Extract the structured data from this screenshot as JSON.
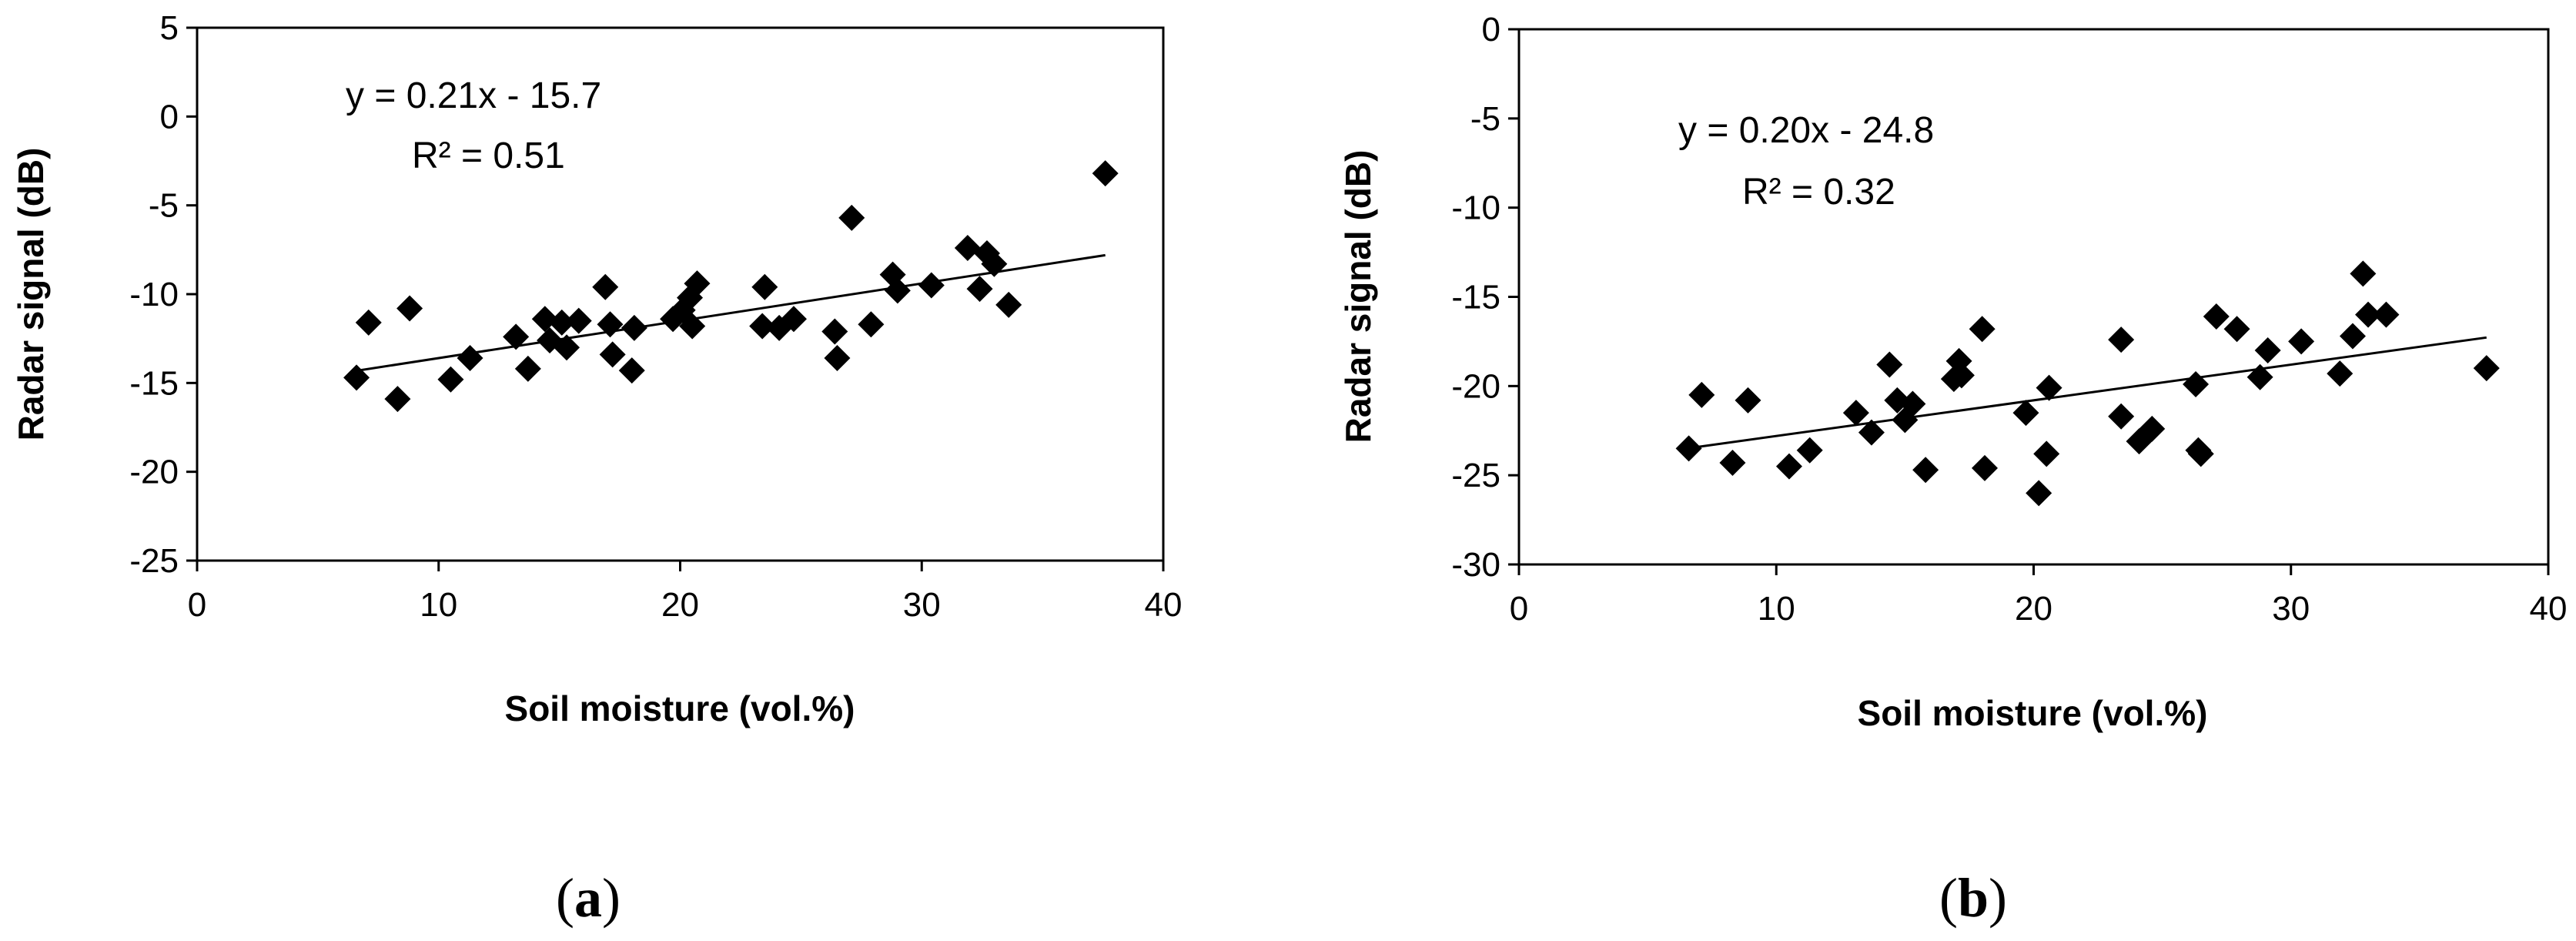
{
  "chart_data": [
    {
      "type": "scatter",
      "panel_label": {
        "open": "(",
        "letter": "a",
        "close": ")"
      },
      "xlabel": "Soil moisture (vol.%)",
      "ylabel": "Radar signal (dB)",
      "xlim": [
        0,
        40
      ],
      "ylim": [
        -25,
        5
      ],
      "xticks": [
        0,
        10,
        20,
        30,
        40
      ],
      "yticks": [
        -25,
        -20,
        -15,
        -10,
        -5,
        0,
        5
      ],
      "grid": false,
      "equation": "y = 0.21x - 15.7",
      "r2": "R² = 0.51",
      "trendline": {
        "slope": 0.21,
        "intercept": -15.7,
        "x_range": [
          6.6,
          37.6
        ]
      },
      "points": [
        [
          6.6,
          -14.7
        ],
        [
          7.1,
          -11.6
        ],
        [
          8.3,
          -15.9
        ],
        [
          8.8,
          -10.8
        ],
        [
          10.5,
          -14.8
        ],
        [
          11.3,
          -13.6
        ],
        [
          13.2,
          -12.4
        ],
        [
          13.7,
          -14.2
        ],
        [
          14.4,
          -11.4
        ],
        [
          14.6,
          -12.6
        ],
        [
          15.1,
          -11.6
        ],
        [
          15.3,
          -13.0
        ],
        [
          15.8,
          -11.5
        ],
        [
          16.9,
          -9.6
        ],
        [
          17.1,
          -11.7
        ],
        [
          17.2,
          -13.4
        ],
        [
          18.0,
          -14.3
        ],
        [
          18.1,
          -11.9
        ],
        [
          19.7,
          -11.4
        ],
        [
          20.1,
          -10.9
        ],
        [
          20.4,
          -10.2
        ],
        [
          20.5,
          -11.8
        ],
        [
          20.7,
          -9.4
        ],
        [
          23.4,
          -11.8
        ],
        [
          23.5,
          -9.6
        ],
        [
          24.1,
          -11.9
        ],
        [
          24.7,
          -11.4
        ],
        [
          26.4,
          -12.1
        ],
        [
          26.5,
          -13.6
        ],
        [
          27.1,
          -5.7
        ],
        [
          27.9,
          -11.7
        ],
        [
          28.8,
          -8.9
        ],
        [
          29.0,
          -9.8
        ],
        [
          30.4,
          -9.5
        ],
        [
          31.9,
          -7.4
        ],
        [
          32.4,
          -9.7
        ],
        [
          32.7,
          -7.7
        ],
        [
          33.0,
          -8.3
        ],
        [
          33.6,
          -10.6
        ],
        [
          37.6,
          -3.2
        ]
      ]
    },
    {
      "type": "scatter",
      "panel_label": {
        "open": "(",
        "letter": "b",
        "close": ")"
      },
      "xlabel": "Soil moisture (vol.%)",
      "ylabel": "Radar signal (dB)",
      "xlim": [
        0,
        40
      ],
      "ylim": [
        -30,
        0
      ],
      "xticks": [
        0,
        10,
        20,
        30,
        40
      ],
      "yticks": [
        -30,
        -25,
        -20,
        -15,
        -10,
        -5,
        0
      ],
      "grid": false,
      "equation": "y = 0.20x - 24.8",
      "r2": "R² = 0.32",
      "trendline": {
        "slope": 0.2,
        "intercept": -24.8,
        "x_range": [
          6.6,
          37.6
        ]
      },
      "points": [
        [
          6.6,
          -23.5
        ],
        [
          7.1,
          -20.5
        ],
        [
          8.3,
          -24.3
        ],
        [
          8.9,
          -20.8
        ],
        [
          10.5,
          -24.5
        ],
        [
          11.3,
          -23.6
        ],
        [
          13.1,
          -21.5
        ],
        [
          13.7,
          -22.6
        ],
        [
          14.4,
          -18.8
        ],
        [
          14.7,
          -20.8
        ],
        [
          15.0,
          -21.9
        ],
        [
          15.3,
          -21.0
        ],
        [
          15.8,
          -24.7
        ],
        [
          16.9,
          -19.6
        ],
        [
          17.1,
          -18.6
        ],
        [
          17.2,
          -19.4
        ],
        [
          18.0,
          -16.8
        ],
        [
          18.1,
          -24.6
        ],
        [
          19.7,
          -21.5
        ],
        [
          20.2,
          -26.0
        ],
        [
          20.5,
          -23.8
        ],
        [
          20.6,
          -20.1
        ],
        [
          23.4,
          -17.4
        ],
        [
          23.4,
          -21.7
        ],
        [
          24.1,
          -23.1
        ],
        [
          24.6,
          -22.4
        ],
        [
          26.3,
          -19.9
        ],
        [
          26.4,
          -23.6
        ],
        [
          26.5,
          -23.8
        ],
        [
          27.1,
          -16.1
        ],
        [
          27.9,
          -16.8
        ],
        [
          28.8,
          -19.5
        ],
        [
          29.1,
          -18.0
        ],
        [
          30.4,
          -17.5
        ],
        [
          31.9,
          -19.3
        ],
        [
          32.4,
          -17.2
        ],
        [
          32.8,
          -13.7
        ],
        [
          33.0,
          -16.0
        ],
        [
          33.7,
          -16.0
        ],
        [
          37.6,
          -19.0
        ]
      ]
    }
  ]
}
